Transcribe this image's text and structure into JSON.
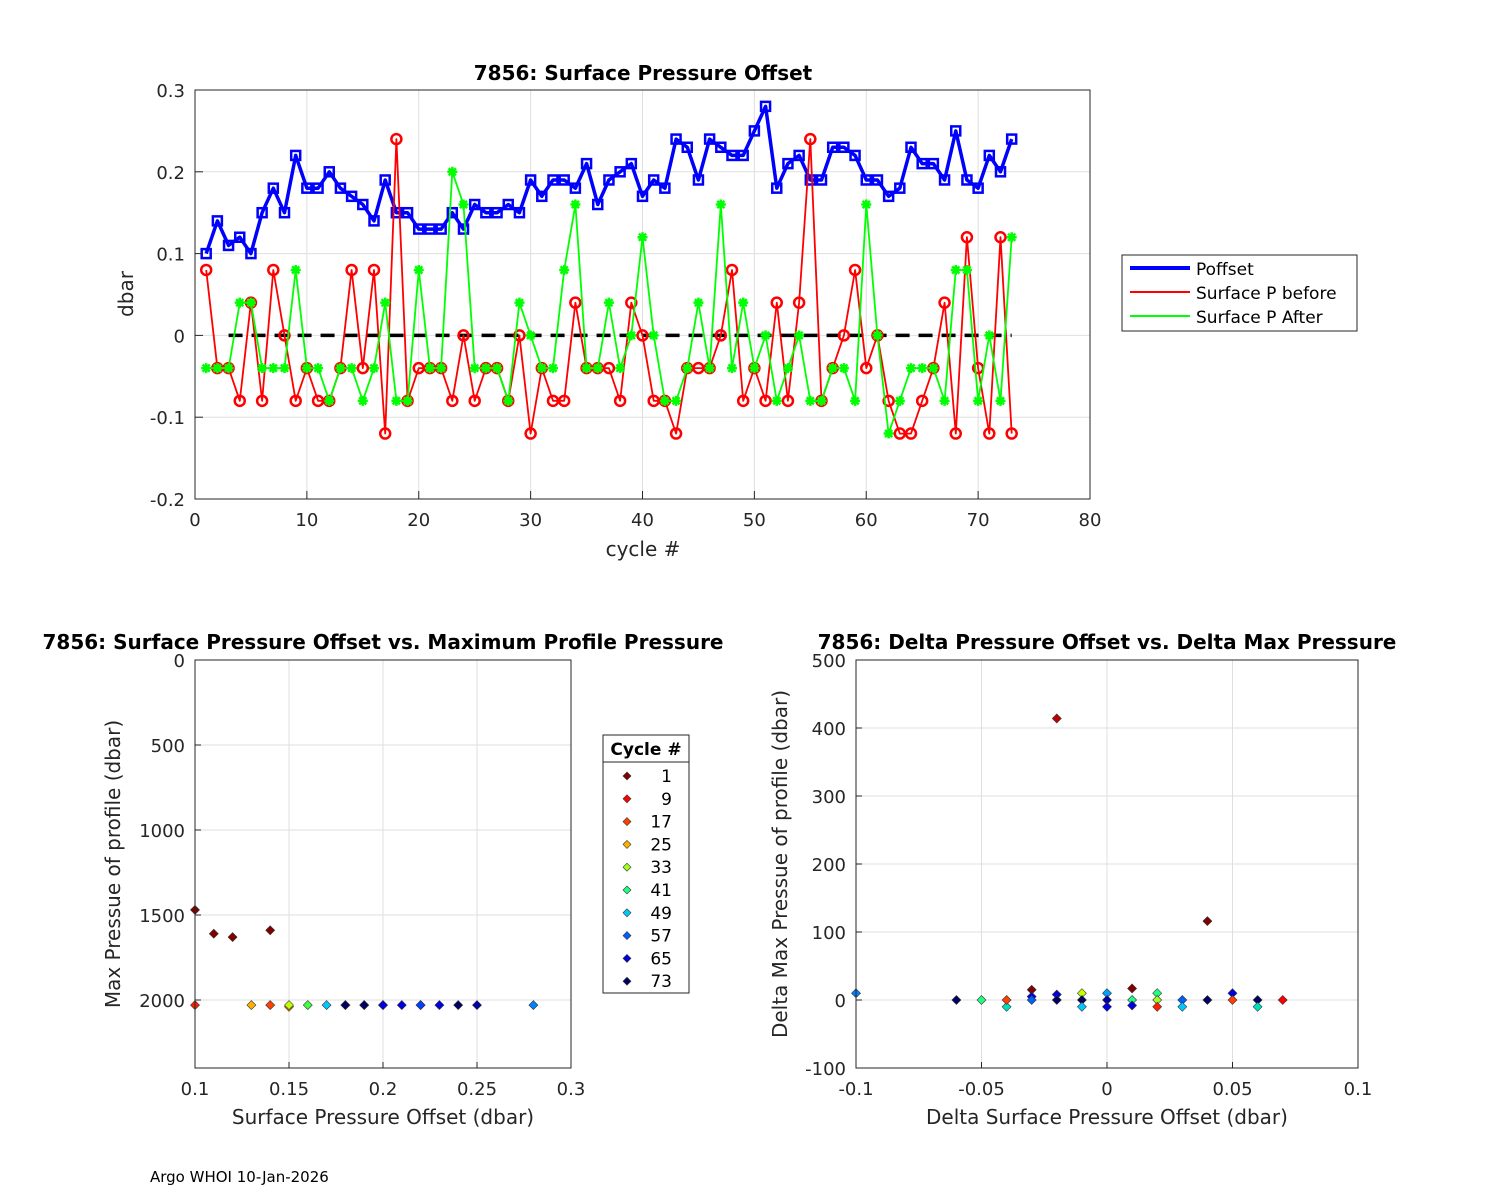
{
  "chart_data": [
    {
      "type": "line",
      "title": "7856: Surface Pressure Offset",
      "xlabel": "cycle #",
      "ylabel": "dbar",
      "xlim": [
        0,
        80
      ],
      "ylim": [
        -0.2,
        0.3
      ],
      "xticks": [
        0,
        10,
        20,
        30,
        40,
        50,
        60,
        70,
        80
      ],
      "yticks": [
        -0.2,
        -0.1,
        0,
        0.1,
        0.2,
        0.3
      ],
      "ytick_labels": [
        "-0.2",
        "-0.1",
        "0",
        "0.1",
        "0.2",
        "0.3"
      ],
      "grid": true,
      "legend_position": "right",
      "zero_line": {
        "x_from": 3,
        "x_to": 73,
        "y": 0,
        "color": "#000000"
      },
      "series": [
        {
          "name": "Poffset",
          "color": "#0000ff",
          "marker": "square",
          "x": [
            1,
            2,
            3,
            4,
            5,
            6,
            7,
            8,
            9,
            10,
            11,
            12,
            13,
            14,
            15,
            16,
            17,
            18,
            19,
            20,
            21,
            22,
            23,
            24,
            25,
            26,
            27,
            28,
            29,
            30,
            31,
            32,
            33,
            34,
            35,
            36,
            37,
            38,
            39,
            40,
            41,
            42,
            43,
            44,
            45,
            46,
            47,
            48,
            49,
            50,
            51,
            52,
            53,
            54,
            55,
            56,
            57,
            58,
            59,
            60,
            61,
            62,
            63,
            64,
            65,
            66,
            67,
            68,
            69,
            70,
            71,
            72,
            73
          ],
          "values": [
            0.1,
            0.14,
            0.11,
            0.12,
            0.1,
            0.15,
            0.18,
            0.15,
            0.22,
            0.18,
            0.18,
            0.2,
            0.18,
            0.17,
            0.16,
            0.14,
            0.19,
            0.15,
            0.15,
            0.13,
            0.13,
            0.13,
            0.15,
            0.13,
            0.16,
            0.15,
            0.15,
            0.16,
            0.15,
            0.19,
            0.17,
            0.19,
            0.19,
            0.18,
            0.21,
            0.16,
            0.19,
            0.2,
            0.21,
            0.17,
            0.19,
            0.18,
            0.24,
            0.23,
            0.19,
            0.24,
            0.23,
            0.22,
            0.22,
            0.25,
            0.28,
            0.18,
            0.21,
            0.22,
            0.19,
            0.19,
            0.23,
            0.23,
            0.22,
            0.19,
            0.19,
            0.17,
            0.18,
            0.23,
            0.21,
            0.21,
            0.19,
            0.25,
            0.19,
            0.18,
            0.22,
            0.2,
            0.24
          ]
        },
        {
          "name": "Surface P before",
          "color": "#ff0000",
          "marker": "circle",
          "x": [
            1,
            2,
            3,
            4,
            5,
            6,
            7,
            8,
            9,
            10,
            11,
            12,
            13,
            14,
            15,
            16,
            17,
            18,
            19,
            20,
            21,
            22,
            23,
            24,
            25,
            26,
            27,
            28,
            29,
            30,
            31,
            32,
            33,
            34,
            35,
            36,
            37,
            38,
            39,
            40,
            41,
            42,
            43,
            44,
            45,
            46,
            47,
            48,
            49,
            50,
            51,
            52,
            53,
            54,
            55,
            56,
            57,
            58,
            59,
            60,
            61,
            62,
            63,
            64,
            65,
            66,
            67,
            68,
            69,
            70,
            71,
            72,
            73
          ],
          "values": [
            0.08,
            -0.04,
            -0.04,
            -0.08,
            0.04,
            -0.08,
            0.08,
            0.0,
            -0.08,
            -0.04,
            -0.08,
            -0.08,
            -0.04,
            0.08,
            -0.04,
            0.08,
            -0.12,
            0.24,
            -0.08,
            -0.04,
            -0.04,
            -0.04,
            -0.08,
            0.0,
            -0.08,
            -0.04,
            -0.04,
            -0.08,
            0.0,
            -0.12,
            -0.04,
            -0.08,
            -0.08,
            0.04,
            -0.04,
            -0.04,
            -0.04,
            -0.08,
            0.04,
            0.0,
            -0.08,
            -0.08,
            -0.12,
            -0.04,
            -0.04,
            -0.04,
            0.0,
            0.08,
            -0.08,
            -0.04,
            -0.08,
            0.04,
            -0.08,
            0.04,
            0.24,
            -0.08,
            -0.04,
            0.0,
            0.08,
            -0.04,
            0.0,
            -0.08,
            -0.12,
            -0.12,
            -0.08,
            -0.04,
            0.04,
            -0.12,
            0.12,
            -0.04,
            -0.12,
            0.12,
            -0.12
          ]
        },
        {
          "name": "Surface P After",
          "color": "#00ff00",
          "marker": "asterisk",
          "x": [
            1,
            2,
            3,
            4,
            5,
            6,
            7,
            8,
            9,
            10,
            11,
            12,
            13,
            14,
            15,
            16,
            17,
            18,
            19,
            20,
            21,
            22,
            23,
            24,
            25,
            26,
            27,
            28,
            29,
            30,
            31,
            32,
            33,
            34,
            35,
            36,
            37,
            38,
            39,
            40,
            41,
            42,
            43,
            44,
            45,
            46,
            47,
            48,
            49,
            50,
            51,
            52,
            53,
            54,
            55,
            56,
            57,
            58,
            59,
            60,
            61,
            62,
            63,
            64,
            65,
            66,
            67,
            68,
            69,
            70,
            71,
            72,
            73
          ],
          "values": [
            -0.04,
            -0.04,
            -0.04,
            0.04,
            0.04,
            -0.04,
            -0.04,
            -0.04,
            0.08,
            -0.04,
            -0.04,
            -0.08,
            -0.04,
            -0.04,
            -0.08,
            -0.04,
            0.04,
            -0.08,
            -0.08,
            0.08,
            -0.04,
            -0.04,
            0.2,
            0.16,
            -0.04,
            -0.04,
            -0.04,
            -0.08,
            0.04,
            0.0,
            -0.04,
            -0.04,
            0.08,
            0.16,
            -0.04,
            -0.04,
            0.04,
            -0.04,
            0.0,
            0.12,
            0.0,
            -0.08,
            -0.08,
            -0.04,
            0.04,
            -0.04,
            0.16,
            -0.04,
            0.04,
            -0.04,
            0.0,
            -0.08,
            -0.04,
            0.0,
            -0.08,
            -0.08,
            -0.04,
            -0.04,
            -0.08,
            0.16,
            0.0,
            -0.12,
            -0.08,
            -0.04,
            -0.04,
            -0.04,
            -0.08,
            0.08,
            0.08,
            -0.08,
            0.0,
            -0.08,
            0.12
          ]
        }
      ]
    },
    {
      "type": "scatter",
      "title": "7856: Surface Pressure Offset vs. Maximum Profile Pressure",
      "xlabel": "Surface Pressure Offset (dbar)",
      "ylabel": "Max Pressue of profile (dbar)",
      "xlim": [
        0.1,
        0.3
      ],
      "ylim": [
        0,
        2400
      ],
      "y_reversed": true,
      "xticks": [
        0.1,
        0.15,
        0.2,
        0.25,
        0.3
      ],
      "xtick_labels": [
        "0.1",
        "0.15",
        "0.2",
        "0.25",
        "0.3"
      ],
      "yticks": [
        0,
        500,
        1000,
        1500,
        2000
      ],
      "ytick_labels": [
        "0",
        "500",
        "1000",
        "1500",
        "2000"
      ],
      "grid": true,
      "legend": {
        "title": "Cycle #",
        "entries": [
          {
            "label": "1",
            "color": "#800000"
          },
          {
            "label": "9",
            "color": "#ff0000"
          },
          {
            "label": "17",
            "color": "#ff4000"
          },
          {
            "label": "25",
            "color": "#ffb000"
          },
          {
            "label": "33",
            "color": "#a0ff20"
          },
          {
            "label": "41",
            "color": "#20ff80"
          },
          {
            "label": "49",
            "color": "#00c8ff"
          },
          {
            "label": "57",
            "color": "#0060ff"
          },
          {
            "label": "65",
            "color": "#0000e0"
          },
          {
            "label": "73",
            "color": "#000060"
          }
        ]
      },
      "points": [
        {
          "x": 0.1,
          "y": 1470,
          "color": "#800000"
        },
        {
          "x": 0.11,
          "y": 1610,
          "color": "#800000"
        },
        {
          "x": 0.12,
          "y": 1630,
          "color": "#800000"
        },
        {
          "x": 0.14,
          "y": 1590,
          "color": "#800000"
        },
        {
          "x": 0.1,
          "y": 2030,
          "color": "#ff2000"
        },
        {
          "x": 0.13,
          "y": 2030,
          "color": "#ffb000"
        },
        {
          "x": 0.14,
          "y": 2030,
          "color": "#ff4000"
        },
        {
          "x": 0.15,
          "y": 2040,
          "color": "#ff8000"
        },
        {
          "x": 0.15,
          "y": 2030,
          "color": "#c0ff00"
        },
        {
          "x": 0.16,
          "y": 2030,
          "color": "#40ff40"
        },
        {
          "x": 0.17,
          "y": 2030,
          "color": "#00c8ff"
        },
        {
          "x": 0.18,
          "y": 2030,
          "color": "#0060ff"
        },
        {
          "x": 0.18,
          "y": 2030,
          "color": "#000060"
        },
        {
          "x": 0.19,
          "y": 2030,
          "color": "#0000e0"
        },
        {
          "x": 0.19,
          "y": 2030,
          "color": "#000060"
        },
        {
          "x": 0.2,
          "y": 2030,
          "color": "#800000"
        },
        {
          "x": 0.2,
          "y": 2030,
          "color": "#0000e0"
        },
        {
          "x": 0.21,
          "y": 2030,
          "color": "#0000e0"
        },
        {
          "x": 0.22,
          "y": 2030,
          "color": "#000060"
        },
        {
          "x": 0.22,
          "y": 2030,
          "color": "#0040ff"
        },
        {
          "x": 0.23,
          "y": 2030,
          "color": "#0000e0"
        },
        {
          "x": 0.24,
          "y": 2030,
          "color": "#000060"
        },
        {
          "x": 0.25,
          "y": 2030,
          "color": "#0000a0"
        },
        {
          "x": 0.28,
          "y": 2030,
          "color": "#0080ff"
        }
      ]
    },
    {
      "type": "scatter",
      "title": "7856: Delta Pressure Offset vs. Delta Max Pressure",
      "xlabel": "Delta Surface Pressure Offset (dbar)",
      "ylabel": "Delta Max Pressue of profile (dbar)",
      "xlim": [
        -0.1,
        0.1
      ],
      "ylim": [
        -100,
        500
      ],
      "xticks": [
        -0.1,
        -0.05,
        0,
        0.05,
        0.1
      ],
      "xtick_labels": [
        "-0.1",
        "-0.05",
        "0",
        "0.05",
        "0.1"
      ],
      "yticks": [
        -100,
        0,
        100,
        200,
        300,
        400,
        500
      ],
      "ytick_labels": [
        "-100",
        "0",
        "100",
        "200",
        "300",
        "400",
        "500"
      ],
      "grid": true,
      "points": [
        {
          "x": -0.02,
          "y": 414,
          "color": "#c00000"
        },
        {
          "x": 0.04,
          "y": 116,
          "color": "#800000"
        },
        {
          "x": -0.1,
          "y": 10,
          "color": "#0080ff"
        },
        {
          "x": -0.06,
          "y": 0,
          "color": "#000060"
        },
        {
          "x": -0.05,
          "y": 0,
          "color": "#20ff80"
        },
        {
          "x": -0.04,
          "y": -10,
          "color": "#00e0c0"
        },
        {
          "x": -0.04,
          "y": 0,
          "color": "#ff4000"
        },
        {
          "x": -0.03,
          "y": 15,
          "color": "#800000"
        },
        {
          "x": -0.03,
          "y": 5,
          "color": "#0000e0"
        },
        {
          "x": -0.03,
          "y": 0,
          "color": "#0060ff"
        },
        {
          "x": -0.02,
          "y": 8,
          "color": "#0000e0"
        },
        {
          "x": -0.02,
          "y": 0,
          "color": "#000060"
        },
        {
          "x": -0.01,
          "y": 10,
          "color": "#c0ff00"
        },
        {
          "x": -0.01,
          "y": 0,
          "color": "#000060"
        },
        {
          "x": -0.01,
          "y": -10,
          "color": "#00c8ff"
        },
        {
          "x": 0.0,
          "y": 10,
          "color": "#00a0ff"
        },
        {
          "x": 0.0,
          "y": 0,
          "color": "#0000a0"
        },
        {
          "x": 0.0,
          "y": -10,
          "color": "#0000e0"
        },
        {
          "x": 0.01,
          "y": 17,
          "color": "#800000"
        },
        {
          "x": 0.01,
          "y": 0,
          "color": "#20ff80"
        },
        {
          "x": 0.01,
          "y": -8,
          "color": "#0000e0"
        },
        {
          "x": 0.02,
          "y": 10,
          "color": "#20ff80"
        },
        {
          "x": 0.02,
          "y": 0,
          "color": "#a0ff20"
        },
        {
          "x": 0.02,
          "y": -10,
          "color": "#ff2000"
        },
        {
          "x": 0.03,
          "y": 0,
          "color": "#0060ff"
        },
        {
          "x": 0.03,
          "y": -10,
          "color": "#00c8ff"
        },
        {
          "x": 0.04,
          "y": 0,
          "color": "#000060"
        },
        {
          "x": 0.05,
          "y": 10,
          "color": "#0000e0"
        },
        {
          "x": 0.05,
          "y": 0,
          "color": "#ff4000"
        },
        {
          "x": 0.06,
          "y": 0,
          "color": "#000060"
        },
        {
          "x": 0.06,
          "y": -10,
          "color": "#00e0c0"
        },
        {
          "x": 0.07,
          "y": 0,
          "color": "#ff0000"
        }
      ]
    }
  ],
  "footer": "Argo WHOI 10-Jan-2026"
}
